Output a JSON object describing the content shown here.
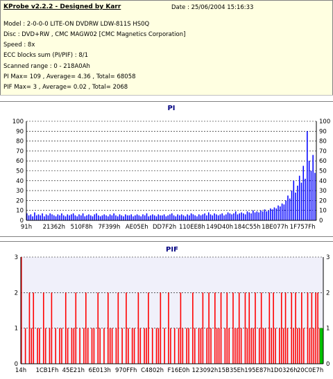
{
  "header": {
    "title": "KProbe v2.2.2 - Designed by Karr",
    "date": "Date : 25/06/2004 15:16:33",
    "lines": [
      "Model : 2-0-0-0 LITE-ON DVDRW LDW-811S   HS0Q",
      "Disc : DVD+RW , CMC MAGW02 [CMC Magnetics Corporation]",
      "Speed : 8x",
      "ECC blocks sum (PI/PIF) : 8/1",
      "Scanned range : 0 - 218A0Ah",
      "PI Max= 109 , Average= 4.36 , Total= 68058",
      "PIF Max= 3 , Average= 0.02 , Total= 2068"
    ]
  },
  "chart_data": [
    {
      "type": "bar",
      "title": "PI",
      "ylim": [
        0,
        100
      ],
      "yticks": [
        0,
        10,
        20,
        30,
        40,
        50,
        60,
        70,
        80,
        90,
        100
      ],
      "xtick_labels": [
        "91h",
        "21362h",
        "510F8h",
        "7F399h",
        "AE05Eh",
        "DD7F2h",
        "110EE8h",
        "149D40h",
        "184C55h",
        "1BE077h",
        "1F757Fh"
      ],
      "grid": true,
      "colors": {
        "bar": "#0000ff",
        "grid": "#000000",
        "background": "#ffffff"
      },
      "series": [
        {
          "values": [
            7,
            5,
            6,
            4,
            8,
            5,
            6,
            5,
            7,
            4,
            6,
            5,
            7,
            6,
            5,
            4,
            6,
            5,
            7,
            5,
            4,
            6,
            5,
            6,
            7,
            5,
            4,
            6,
            5,
            7,
            4,
            5,
            6,
            5,
            4,
            6,
            7,
            5,
            4,
            5,
            6,
            5,
            4,
            6,
            5,
            7,
            5,
            4,
            6,
            5,
            4,
            6,
            5,
            5,
            6,
            4,
            5,
            6,
            5,
            4,
            6,
            5,
            7,
            4,
            5,
            6,
            5,
            4,
            6,
            5,
            5,
            6,
            4,
            5,
            6,
            7,
            5,
            4,
            6,
            5,
            6,
            5,
            4,
            6,
            5,
            7,
            6,
            5,
            4,
            6,
            5,
            6,
            7,
            5,
            8,
            6,
            5,
            7,
            6,
            5,
            6,
            7,
            5,
            6,
            8,
            7,
            6,
            7,
            9,
            6,
            7,
            8,
            7,
            6,
            9,
            8,
            7,
            10,
            8,
            9,
            8,
            10,
            9,
            11,
            9,
            10,
            12,
            11,
            13,
            12,
            15,
            14,
            17,
            16,
            20,
            25,
            22,
            30,
            40,
            28,
            35,
            45,
            38,
            55,
            42,
            90,
            60,
            50,
            66,
            48
          ]
        }
      ]
    },
    {
      "type": "bar",
      "title": "PIF",
      "ylim": [
        0,
        3
      ],
      "yticks": [
        0,
        1,
        2,
        3
      ],
      "xtick_labels": [
        "14h",
        "1CB1Fh",
        "45E21h",
        "6E013h",
        "970FFh",
        "C4802h",
        "F16E0h",
        "123092h",
        "15B35Eh",
        "195E87h",
        "1D0326h",
        "20C0E7h"
      ],
      "grid": true,
      "colors": {
        "bar": "#ff0000",
        "end_marker": "#00c000",
        "grid": "#000000",
        "background": "#f0f0fa"
      },
      "series": [
        {
          "values": [
            3,
            0,
            1,
            0,
            2,
            1,
            2,
            0,
            1,
            1,
            0,
            2,
            1,
            0,
            1,
            2,
            0,
            1,
            0,
            1,
            1,
            0,
            2,
            1,
            0,
            1,
            1,
            2,
            0,
            1,
            0,
            1,
            2,
            1,
            0,
            1,
            1,
            0,
            2,
            1,
            0,
            1,
            0,
            2,
            1,
            1,
            0,
            1,
            2,
            0,
            1,
            0,
            2,
            1,
            0,
            1,
            1,
            0,
            2,
            1,
            0,
            1,
            1,
            2,
            0,
            1,
            0,
            1,
            1,
            2,
            0,
            1,
            0,
            2,
            1,
            0,
            1,
            0,
            1,
            2,
            1,
            0,
            1,
            1,
            0,
            2,
            1,
            0,
            1,
            1,
            2,
            0,
            1,
            2,
            1,
            0,
            2,
            1,
            1,
            2,
            0,
            1,
            2,
            1,
            0,
            2,
            1,
            1,
            2,
            1,
            0,
            2,
            1,
            2,
            1,
            1,
            2,
            0,
            1,
            2,
            1,
            1,
            0,
            2,
            1,
            2,
            1,
            0,
            1,
            2,
            1,
            2,
            1,
            0,
            2,
            1,
            2,
            1,
            1,
            2,
            1,
            0,
            2,
            1,
            2,
            1,
            2,
            2,
            1,
            1
          ]
        }
      ]
    }
  ]
}
